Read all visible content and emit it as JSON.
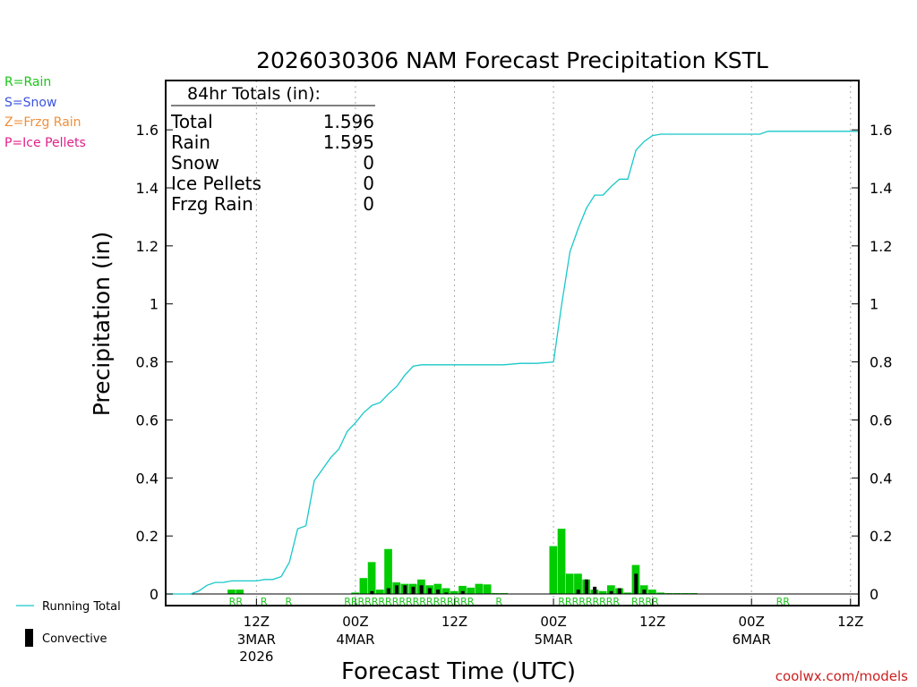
{
  "chart_data": {
    "type": "bar",
    "title": "2026030306 NAM Forecast Precipitation KSTL",
    "xlabel": "Forecast Time (UTC)",
    "ylabel": "Precipitation (in)",
    "ylim": [
      -0.04,
      1.77
    ],
    "yticks": [
      0,
      0.2,
      0.4,
      0.6,
      0.8,
      1,
      1.2,
      1.4,
      1.6
    ],
    "ytick_labels": [
      "0",
      "0.2",
      "0.4",
      "0.6",
      "0.8",
      "1",
      "1.2",
      "1.4",
      "1.6"
    ],
    "xlim_hours": [
      -5,
      79
    ],
    "xticks": [
      {
        "hour": 6,
        "label": "12Z",
        "sub1": "3MAR",
        "sub2": "2026"
      },
      {
        "hour": 18,
        "label": "00Z",
        "sub1": "4MAR",
        "sub2": ""
      },
      {
        "hour": 30,
        "label": "12Z",
        "sub1": "",
        "sub2": ""
      },
      {
        "hour": 42,
        "label": "00Z",
        "sub1": "5MAR",
        "sub2": ""
      },
      {
        "hour": 54,
        "label": "12Z",
        "sub1": "",
        "sub2": ""
      },
      {
        "hour": 66,
        "label": "00Z",
        "sub1": "6MAR",
        "sub2": ""
      },
      {
        "hour": 78,
        "label": "12Z",
        "sub1": "",
        "sub2": ""
      }
    ],
    "legend_top": [
      {
        "text": "R=Rain",
        "color": "#19c519"
      },
      {
        "text": "S=Snow",
        "color": "#3b54e0"
      },
      {
        "text": "Z=Frzg Rain",
        "color": "#ef8f3c"
      },
      {
        "text": "P=Ice Pellets",
        "color": "#e0208a"
      }
    ],
    "legend_bottom": [
      {
        "text": "Running Total",
        "color": "#19c8c8",
        "kind": "line"
      },
      {
        "text": "Convective",
        "color": "#000000",
        "kind": "bar"
      }
    ],
    "totals_box": {
      "heading": "84hr Totals (in):",
      "rows": [
        {
          "label": "Total",
          "value": "1.596"
        },
        {
          "label": "Rain",
          "value": "1.595"
        },
        {
          "label": "Snow",
          "value": "0"
        },
        {
          "label": "Ice Pellets",
          "value": "0"
        },
        {
          "label": "Frzg Rain",
          "value": "0"
        }
      ]
    },
    "series": [
      {
        "name": "Hourly Precipitation",
        "color": "#00cc00",
        "hours": [
          3,
          4,
          18,
          19,
          20,
          21,
          22,
          23,
          24,
          25,
          26,
          27,
          28,
          29,
          30,
          31,
          32,
          33,
          34,
          35,
          36,
          42,
          43,
          44,
          45,
          46,
          47,
          48,
          49,
          50,
          51,
          52,
          53,
          54,
          55,
          56,
          57,
          58,
          59
        ],
        "values": [
          0.015,
          0.015,
          0.005,
          0.055,
          0.11,
          0.015,
          0.155,
          0.04,
          0.035,
          0.035,
          0.05,
          0.03,
          0.035,
          0.02,
          0.01,
          0.028,
          0.022,
          0.035,
          0.033,
          0.0,
          0.0,
          0.165,
          0.225,
          0.07,
          0.07,
          0.05,
          0.015,
          0.01,
          0.03,
          0.02,
          0.005,
          0.1,
          0.03,
          0.015,
          0.005,
          0.0,
          0.0,
          0.0,
          0.0
        ]
      },
      {
        "name": "Convective",
        "color": "#000000",
        "hours": [
          20,
          22,
          23,
          24,
          25,
          26,
          27,
          28,
          29,
          31,
          45,
          46,
          47,
          49,
          50,
          52,
          53
        ],
        "values": [
          0.01,
          0.02,
          0.03,
          0.03,
          0.025,
          0.03,
          0.02,
          0.015,
          0.005,
          0.01,
          0.015,
          0.05,
          0.025,
          0.01,
          0.02,
          0.07,
          0.015
        ]
      },
      {
        "name": "Running Total",
        "color": "#19c8c8",
        "hours": [
          -5,
          -3,
          -2,
          -1,
          0,
          1,
          2,
          3,
          4,
          5,
          6,
          7,
          8,
          9,
          10,
          11,
          12,
          13,
          14,
          15,
          16,
          17,
          18,
          19,
          20,
          21,
          22,
          23,
          24,
          25,
          26,
          27,
          28,
          29,
          30,
          31,
          32,
          33,
          34,
          35,
          36,
          38,
          40,
          42,
          43,
          44,
          45,
          46,
          47,
          48,
          49,
          50,
          51,
          52,
          53,
          54,
          55,
          56,
          60,
          64,
          66,
          67,
          68,
          70,
          72,
          75,
          79
        ],
        "values": [
          0,
          0,
          0,
          0.01,
          0.03,
          0.04,
          0.04,
          0.045,
          0.045,
          0.045,
          0.045,
          0.05,
          0.05,
          0.06,
          0.11,
          0.225,
          0.235,
          0.39,
          0.43,
          0.47,
          0.5,
          0.56,
          0.59,
          0.625,
          0.65,
          0.66,
          0.69,
          0.715,
          0.755,
          0.785,
          0.79,
          0.79,
          0.79,
          0.79,
          0.79,
          0.79,
          0.79,
          0.79,
          0.79,
          0.79,
          0.79,
          0.795,
          0.795,
          0.8,
          1.0,
          1.18,
          1.26,
          1.33,
          1.375,
          1.375,
          1.405,
          1.43,
          1.43,
          1.53,
          1.56,
          1.58,
          1.585,
          1.585,
          1.585,
          1.585,
          1.585,
          1.585,
          1.595,
          1.595,
          1.595,
          1.595,
          1.595
        ]
      }
    ],
    "ptype_labels": [
      {
        "hour": 3.5,
        "text": "RR"
      },
      {
        "hour": 6.9,
        "text": "R"
      },
      {
        "hour": 9.9,
        "text": "R"
      },
      {
        "hour": 24.5,
        "text": "RRRRRRRRRRRRRRRRRRR"
      },
      {
        "hour": 35.4,
        "text": "R"
      },
      {
        "hour": 46.3,
        "text": "RRRRRRRRR"
      },
      {
        "hour": 53.1,
        "text": "RRRR"
      },
      {
        "hour": 69.8,
        "text": "RR"
      }
    ],
    "credit": "coolwx.com/models"
  }
}
